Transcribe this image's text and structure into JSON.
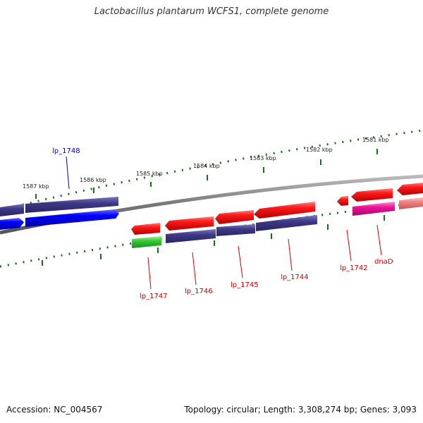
{
  "title": "Lactobacillus plantarum WCFS1, complete genome",
  "footer": {
    "accession": "Accession: NC_004567",
    "topology": "Topology: circular; Length: 3,308,274 bp; Genes: 3,093"
  },
  "colors": {
    "forward_gene": "#ff0000",
    "reverse_gene": "#0000ff",
    "purple_gene": "#3a3585",
    "green_gene": "#33cc33",
    "magenta_gene": "#ee1199",
    "pink_gene": "#f08080",
    "ruler_tick": "#1a6b1a",
    "backbone": "#777777",
    "label_red": "#cc0000",
    "label_blue": "#0000bb"
  },
  "kbp_labels": [
    "1587 kbp",
    "1586 kbp",
    "1585 kbp",
    "1584 kbp",
    "1583 kbp",
    "1582 kbp",
    "1581 kbp"
  ],
  "gene_labels": {
    "lp_1748": "lp_1748",
    "lp_1747": "lp_1747",
    "lp_1746": "lp_1746",
    "lp_1745": "lp_1745",
    "lp_1744": "lp_1744",
    "lp_1742": "lp_1742",
    "dnaD": "dnaD"
  }
}
